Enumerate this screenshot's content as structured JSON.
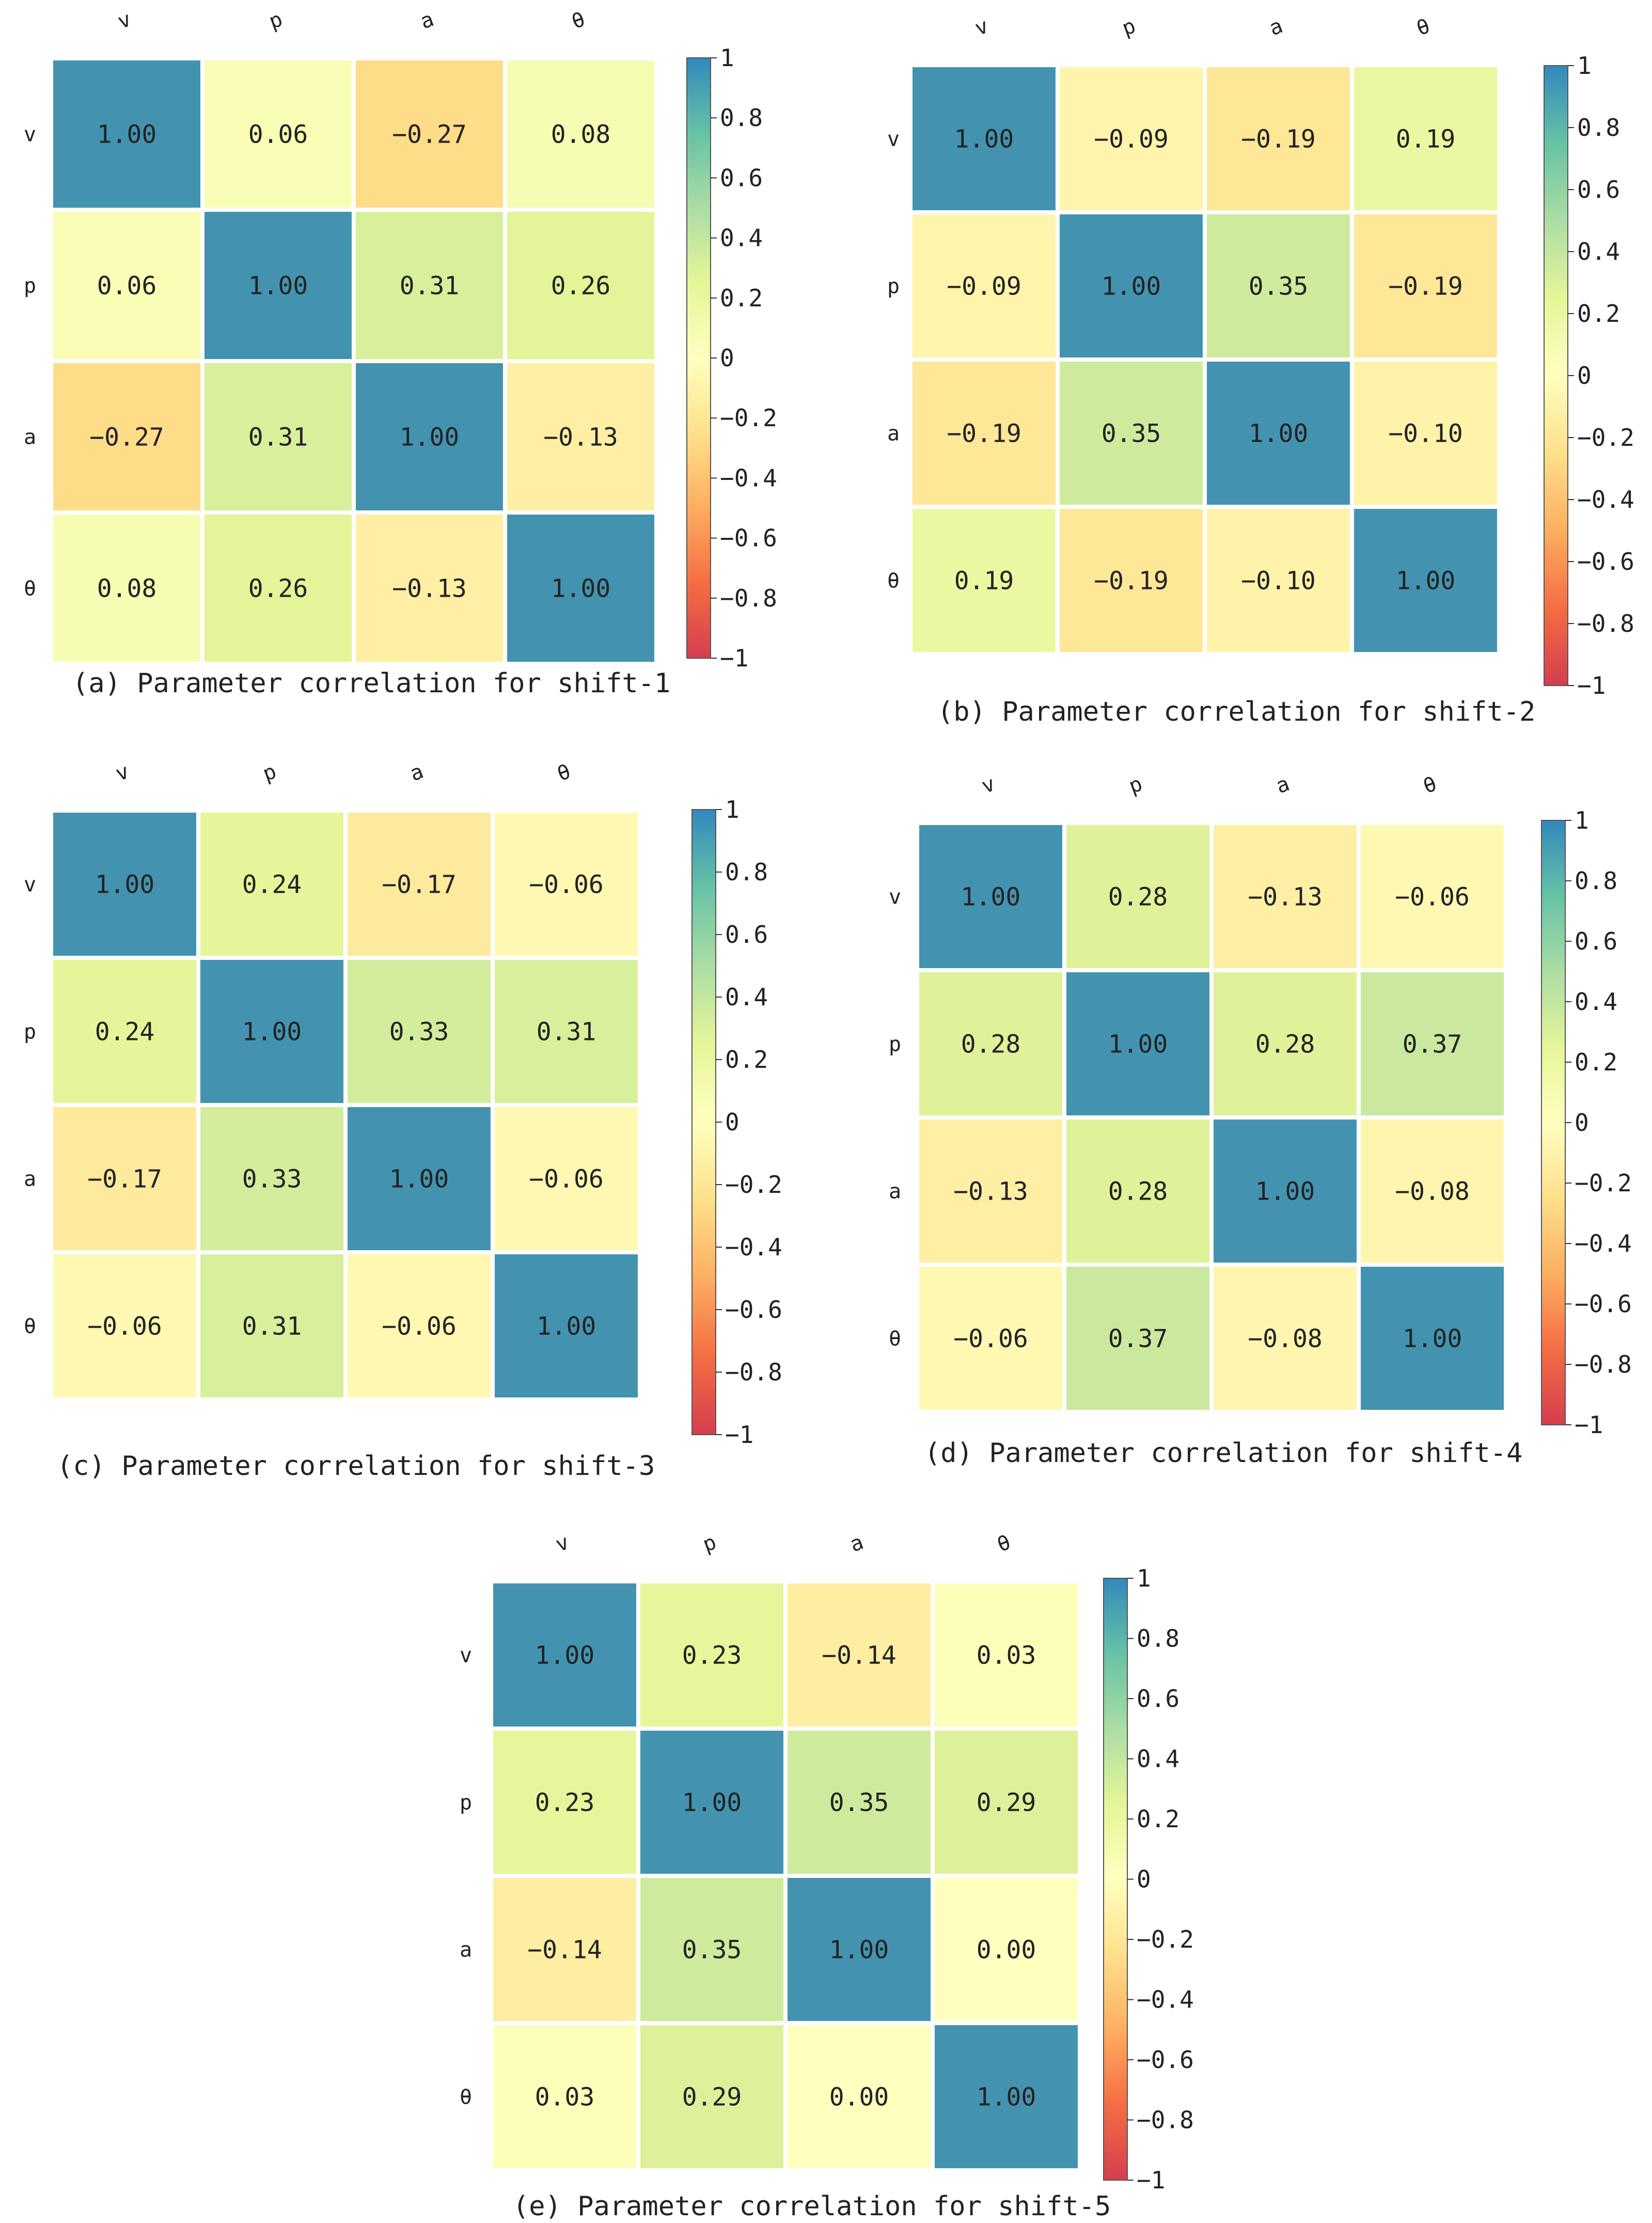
{
  "chart_data": [
    {
      "type": "heatmap",
      "caption": "(a) Parameter correlation for shift-1",
      "row_labels": [
        "v",
        "p",
        "a",
        "θ"
      ],
      "col_labels": [
        "v",
        "p",
        "a",
        "θ"
      ],
      "values": [
        [
          1.0,
          0.06,
          -0.27,
          0.08
        ],
        [
          0.06,
          1.0,
          0.31,
          0.26
        ],
        [
          -0.27,
          0.31,
          1.0,
          -0.13
        ],
        [
          0.08,
          0.26,
          -0.13,
          1.0
        ]
      ],
      "value_labels": [
        [
          "1.00",
          "0.06",
          "−0.27",
          "0.08"
        ],
        [
          "0.06",
          "1.00",
          "0.31",
          "0.26"
        ],
        [
          "−0.27",
          "0.31",
          "1.00",
          "−0.13"
        ],
        [
          "0.08",
          "0.26",
          "−0.13",
          "1.00"
        ]
      ],
      "colorbar": {
        "range": [
          -1,
          1
        ],
        "ticks": [
          1,
          0.8,
          0.6,
          0.4,
          0.2,
          0,
          -0.2,
          -0.4,
          -0.6,
          -0.8,
          -1
        ],
        "tick_labels": [
          "1",
          "0.8",
          "0.6",
          "0.4",
          "0.2",
          "0",
          "−0.2",
          "−0.4",
          "−0.6",
          "−0.8",
          "−1"
        ]
      }
    },
    {
      "type": "heatmap",
      "caption": "(b) Parameter correlation for shift-2",
      "row_labels": [
        "v",
        "p",
        "a",
        "θ"
      ],
      "col_labels": [
        "v",
        "p",
        "a",
        "θ"
      ],
      "values": [
        [
          1.0,
          -0.09,
          -0.19,
          0.19
        ],
        [
          -0.09,
          1.0,
          0.35,
          -0.19
        ],
        [
          -0.19,
          0.35,
          1.0,
          -0.1
        ],
        [
          0.19,
          -0.19,
          -0.1,
          1.0
        ]
      ],
      "value_labels": [
        [
          "1.00",
          "−0.09",
          "−0.19",
          "0.19"
        ],
        [
          "−0.09",
          "1.00",
          "0.35",
          "−0.19"
        ],
        [
          "−0.19",
          "0.35",
          "1.00",
          "−0.10"
        ],
        [
          "0.19",
          "−0.19",
          "−0.10",
          "1.00"
        ]
      ],
      "colorbar": {
        "range": [
          -1,
          1
        ],
        "ticks": [
          1,
          0.8,
          0.6,
          0.4,
          0.2,
          0,
          -0.2,
          -0.4,
          -0.6,
          -0.8,
          -1
        ],
        "tick_labels": [
          "1",
          "0.8",
          "0.6",
          "0.4",
          "0.2",
          "0",
          "−0.2",
          "−0.4",
          "−0.6",
          "−0.8",
          "−1"
        ]
      }
    },
    {
      "type": "heatmap",
      "caption": "(c) Parameter correlation for shift-3",
      "row_labels": [
        "v",
        "p",
        "a",
        "θ"
      ],
      "col_labels": [
        "v",
        "p",
        "a",
        "θ"
      ],
      "values": [
        [
          1.0,
          0.24,
          -0.17,
          -0.06
        ],
        [
          0.24,
          1.0,
          0.33,
          0.31
        ],
        [
          -0.17,
          0.33,
          1.0,
          -0.06
        ],
        [
          -0.06,
          0.31,
          -0.06,
          1.0
        ]
      ],
      "value_labels": [
        [
          "1.00",
          "0.24",
          "−0.17",
          "−0.06"
        ],
        [
          "0.24",
          "1.00",
          "0.33",
          "0.31"
        ],
        [
          "−0.17",
          "0.33",
          "1.00",
          "−0.06"
        ],
        [
          "−0.06",
          "0.31",
          "−0.06",
          "1.00"
        ]
      ],
      "colorbar": {
        "range": [
          -1,
          1
        ],
        "ticks": [
          1,
          0.8,
          0.6,
          0.4,
          0.2,
          0,
          -0.2,
          -0.4,
          -0.6,
          -0.8,
          -1
        ],
        "tick_labels": [
          "1",
          "0.8",
          "0.6",
          "0.4",
          "0.2",
          "0",
          "−0.2",
          "−0.4",
          "−0.6",
          "−0.8",
          "−1"
        ]
      }
    },
    {
      "type": "heatmap",
      "caption": "(d) Parameter correlation for shift-4",
      "row_labels": [
        "v",
        "p",
        "a",
        "θ"
      ],
      "col_labels": [
        "v",
        "p",
        "a",
        "θ"
      ],
      "values": [
        [
          1.0,
          0.28,
          -0.13,
          -0.06
        ],
        [
          0.28,
          1.0,
          0.28,
          0.37
        ],
        [
          -0.13,
          0.28,
          1.0,
          -0.08
        ],
        [
          -0.06,
          0.37,
          -0.08,
          1.0
        ]
      ],
      "value_labels": [
        [
          "1.00",
          "0.28",
          "−0.13",
          "−0.06"
        ],
        [
          "0.28",
          "1.00",
          "0.28",
          "0.37"
        ],
        [
          "−0.13",
          "0.28",
          "1.00",
          "−0.08"
        ],
        [
          "−0.06",
          "0.37",
          "−0.08",
          "1.00"
        ]
      ],
      "colorbar": {
        "range": [
          -1,
          1
        ],
        "ticks": [
          1,
          0.8,
          0.6,
          0.4,
          0.2,
          0,
          -0.2,
          -0.4,
          -0.6,
          -0.8,
          -1
        ],
        "tick_labels": [
          "1",
          "0.8",
          "0.6",
          "0.4",
          "0.2",
          "0",
          "−0.2",
          "−0.4",
          "−0.6",
          "−0.8",
          "−1"
        ]
      }
    },
    {
      "type": "heatmap",
      "caption": "(e) Parameter correlation for shift-5",
      "row_labels": [
        "v",
        "p",
        "a",
        "θ"
      ],
      "col_labels": [
        "v",
        "p",
        "a",
        "θ"
      ],
      "values": [
        [
          1.0,
          0.23,
          -0.14,
          0.03
        ],
        [
          0.23,
          1.0,
          0.35,
          0.29
        ],
        [
          -0.14,
          0.35,
          1.0,
          0.0
        ],
        [
          0.03,
          0.29,
          0.0,
          1.0
        ]
      ],
      "value_labels": [
        [
          "1.00",
          "0.23",
          "−0.14",
          "0.03"
        ],
        [
          "0.23",
          "1.00",
          "0.35",
          "0.29"
        ],
        [
          "−0.14",
          "0.35",
          "1.00",
          "0.00"
        ],
        [
          "0.03",
          "0.29",
          "0.00",
          "1.00"
        ]
      ],
      "colorbar": {
        "range": [
          -1,
          1
        ],
        "ticks": [
          1,
          0.8,
          0.6,
          0.4,
          0.2,
          0,
          -0.2,
          -0.4,
          -0.6,
          -0.8,
          -1
        ],
        "tick_labels": [
          "1",
          "0.8",
          "0.6",
          "0.4",
          "0.2",
          "0",
          "−0.2",
          "−0.4",
          "−0.6",
          "−0.8",
          "−1"
        ]
      }
    }
  ],
  "colors": {
    "scale": [
      "#d53e4f",
      "#f46d43",
      "#fdae61",
      "#fee08b",
      "#ffffbf",
      "#e6f598",
      "#abdda4",
      "#66c2a5",
      "#3288bd"
    ],
    "diagonal": "#4393b0",
    "text": "#222222"
  }
}
